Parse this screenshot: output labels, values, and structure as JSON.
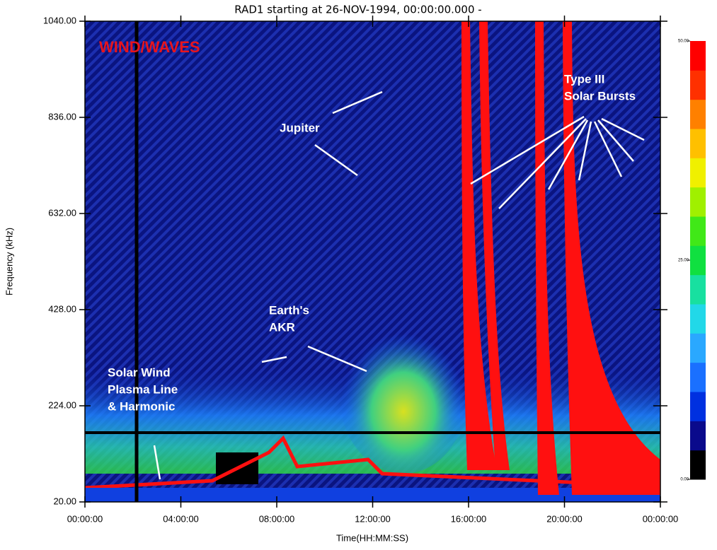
{
  "chart_data": {
    "type": "spectrogram",
    "title": "RAD1 starting at 26-NOV-1994, 00:00:00.000     -",
    "xlabel": "Time(HH:MM:SS)",
    "ylabel": "Frequency (kHz)",
    "xlim": [
      0,
      24
    ],
    "xticks": [
      {
        "value": 0,
        "label": "00:00:00"
      },
      {
        "value": 4,
        "label": "04:00:00"
      },
      {
        "value": 8,
        "label": "08:00:00"
      },
      {
        "value": 12,
        "label": "12:00:00"
      },
      {
        "value": 16,
        "label": "16:00:00"
      },
      {
        "value": 20,
        "label": "20:00:00"
      },
      {
        "value": 24,
        "label": "00:00:00"
      }
    ],
    "ylim": [
      20,
      1040
    ],
    "yticks": [
      {
        "value": 20,
        "label": "20.00"
      },
      {
        "value": 224,
        "label": "224.00"
      },
      {
        "value": 428,
        "label": "428.00"
      },
      {
        "value": 632,
        "label": "632.00"
      },
      {
        "value": 836,
        "label": "836.00"
      },
      {
        "value": 1040,
        "label": "1040.00"
      }
    ],
    "annotations": [
      {
        "lines": [
          "WIND/WAVES"
        ],
        "color": "#e8141c"
      },
      {
        "lines": [
          "Jupiter"
        ],
        "color": "#ffffff"
      },
      {
        "lines": [
          "Earth's",
          "AKR"
        ],
        "color": "#ffffff"
      },
      {
        "lines": [
          "Type III",
          "Solar Bursts"
        ],
        "color": "#ffffff"
      },
      {
        "lines": [
          "Solar Wind",
          "Plasma Line",
          "& Harmonic"
        ],
        "color": "#ffffff"
      }
    ],
    "colorbar": {
      "lim": [
        0,
        50
      ],
      "ticks": [
        {
          "value": 0,
          "label": "0.00"
        },
        {
          "value": 25,
          "label": "25.00"
        },
        {
          "value": 50,
          "label": "50.00"
        }
      ],
      "colors": [
        "#000000",
        "#0a0a8c",
        "#0030e0",
        "#1a70ff",
        "#2aa8ff",
        "#22d8e8",
        "#18e0a0",
        "#10e040",
        "#40e818",
        "#a0f000",
        "#f0f000",
        "#ffc000",
        "#ff8000",
        "#ff3000",
        "#ff0000"
      ]
    }
  }
}
